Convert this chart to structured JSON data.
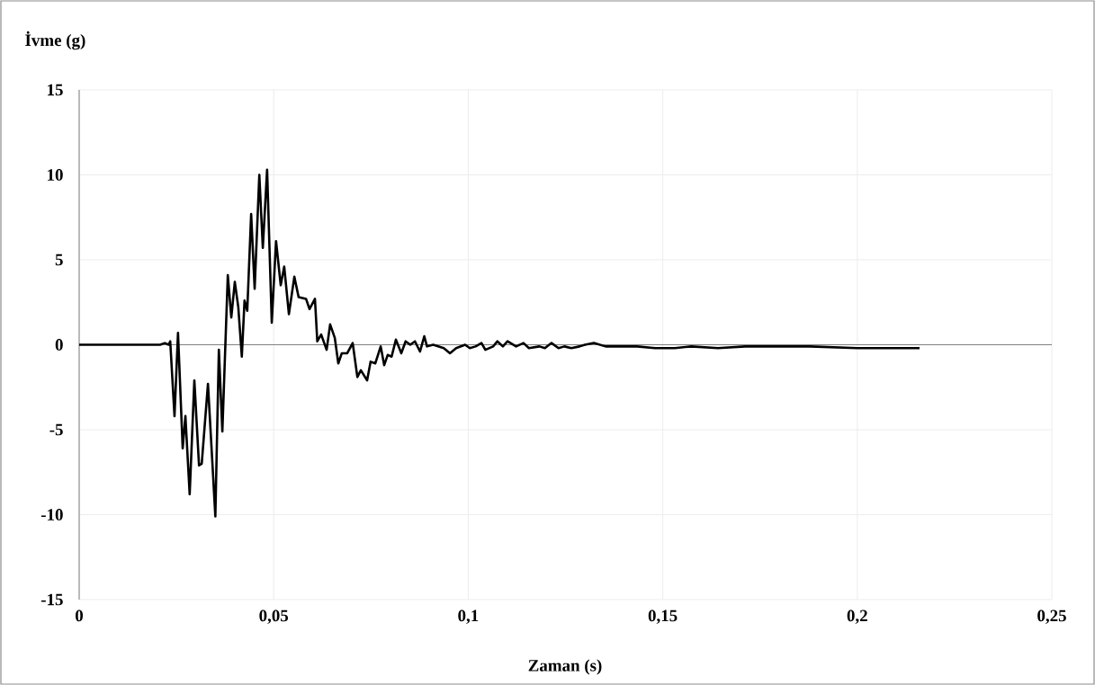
{
  "chart_data": {
    "type": "line",
    "ylabel": "İvme (g)",
    "xlabel": "Zaman (s)",
    "xlim": [
      0,
      0.25
    ],
    "ylim": [
      -15,
      15
    ],
    "xticks": [
      0,
      {
        "value": 0.05,
        "label": "0,05"
      },
      {
        "value": 0.1,
        "label": "0,1"
      },
      {
        "value": 0.15,
        "label": "0,15"
      },
      {
        "value": 0.2,
        "label": "0,2"
      },
      {
        "value": 0.25,
        "label": "0,25"
      }
    ],
    "yticks": [
      -15,
      -10,
      -5,
      0,
      5,
      10,
      15
    ],
    "grid": true,
    "marker": "none",
    "line_style": "solid",
    "series": [
      {
        "color": "#000000",
        "x": [
          0,
          0.0208,
          0.022,
          0.023,
          0.0234,
          0.0245,
          0.0254,
          0.0266,
          0.0273,
          0.0284,
          0.0296,
          0.0308,
          0.0315,
          0.0331,
          0.035,
          0.0359,
          0.0368,
          0.0382,
          0.0391,
          0.04,
          0.0409,
          0.0418,
          0.0425,
          0.0432,
          0.0442,
          0.0451,
          0.0463,
          0.0472,
          0.0483,
          0.0495,
          0.0506,
          0.0518,
          0.0527,
          0.0539,
          0.0553,
          0.0564,
          0.0583,
          0.0592,
          0.0606,
          0.0612,
          0.0622,
          0.0636,
          0.0645,
          0.0657,
          0.0666,
          0.0675,
          0.0689,
          0.0703,
          0.0715,
          0.0724,
          0.074,
          0.0749,
          0.0761,
          0.0775,
          0.0784,
          0.0793,
          0.0803,
          0.0814,
          0.0828,
          0.0839,
          0.0851,
          0.0863,
          0.0876,
          0.0887,
          0.0894,
          0.091,
          0.0937,
          0.0953,
          0.0969,
          0.0992,
          0.1004,
          0.1019,
          0.1034,
          0.1044,
          0.1064,
          0.1075,
          0.1089,
          0.1101,
          0.1123,
          0.1142,
          0.1142,
          0.1156,
          0.1183,
          0.1197,
          0.1214,
          0.1232,
          0.1247,
          0.1265,
          0.1286,
          0.13,
          0.1323,
          0.1353,
          0.1388,
          0.1434,
          0.148,
          0.1531,
          0.1573,
          0.1642,
          0.1712,
          0.1758,
          0.1878,
          0.2,
          0.2116,
          0.216
        ],
        "values": [
          0,
          0,
          0.1,
          0,
          0.2,
          -4.2,
          0.7,
          -6.1,
          -4.2,
          -8.8,
          -2.1,
          -7.1,
          -7,
          -2.3,
          -10.1,
          -0.3,
          -5.1,
          4.1,
          1.6,
          3.7,
          2.2,
          -0.7,
          2.6,
          2.0,
          7.7,
          3.3,
          10,
          5.7,
          10.3,
          1.3,
          6.1,
          3.5,
          4.6,
          1.8,
          4.0,
          2.8,
          2.7,
          2.1,
          2.7,
          0.2,
          0.6,
          -0.3,
          1.2,
          0.4,
          -1.1,
          -0.5,
          -0.5,
          0.1,
          -1.9,
          -1.5,
          -2.1,
          -1.0,
          -1.1,
          -0.1,
          -1.2,
          -0.6,
          -0.7,
          0.3,
          -0.5,
          0.2,
          0,
          0.2,
          -0.4,
          0.5,
          -0.1,
          0,
          -0.2,
          -0.5,
          -0.2,
          0,
          -0.2,
          -0.1,
          0.1,
          -0.3,
          -0.1,
          0.2,
          -0.1,
          0.2,
          -0.1,
          0.1,
          0.1,
          -0.2,
          -0.1,
          -0.2,
          0.1,
          -0.2,
          -0.1,
          -0.2,
          -0.1,
          0,
          0.1,
          -0.1,
          -0.1,
          -0.1,
          -0.2,
          -0.2,
          -0.1,
          -0.2,
          -0.1,
          -0.1,
          -0.1,
          -0.2,
          -0.2,
          -0.2
        ]
      }
    ]
  }
}
